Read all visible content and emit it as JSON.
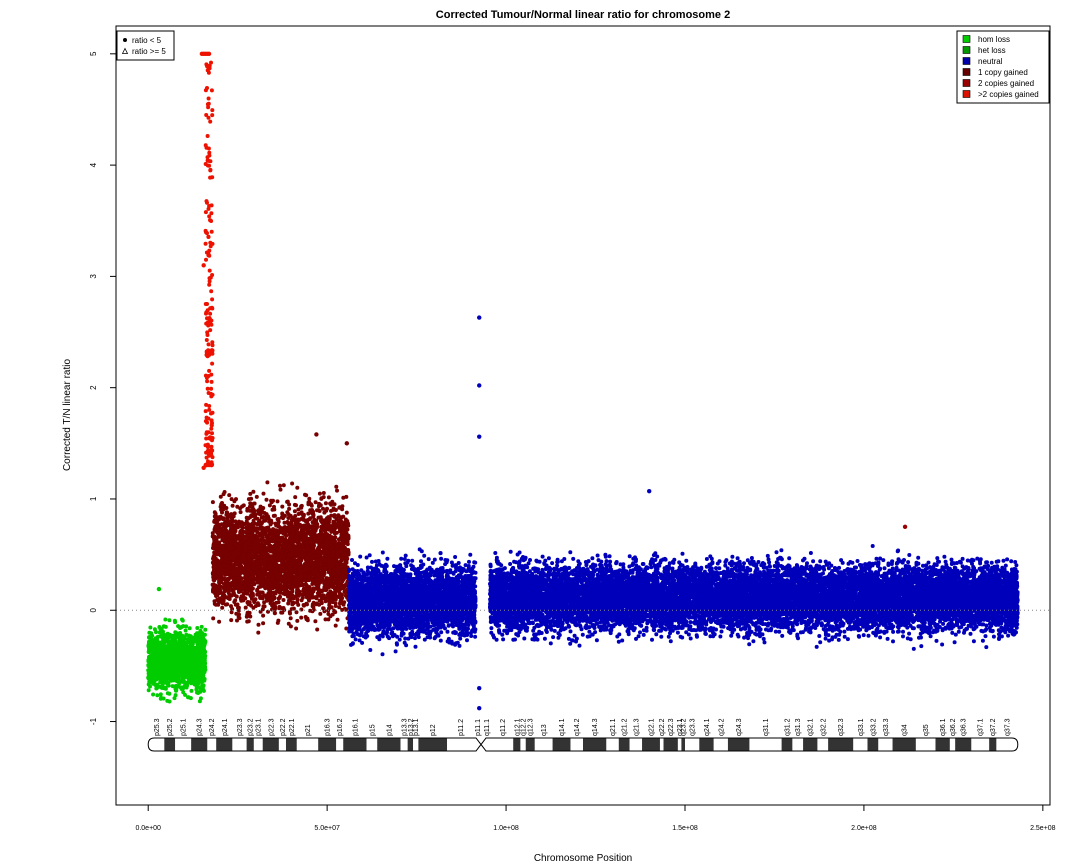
{
  "chart_data": {
    "type": "scatter",
    "title": "Corrected Tumour/Normal linear ratio for chromosome  2",
    "xlabel": "Chromosome Position",
    "ylabel": "Corrected T/N linear ratio",
    "xlim": [
      -9000000,
      252000000
    ],
    "ylim": [
      -1.75,
      5.25
    ],
    "x_ticks": [
      {
        "value": 0,
        "label": "0.0e+00"
      },
      {
        "value": 50000000,
        "label": "5.0e+07"
      },
      {
        "value": 100000000,
        "label": "1.0e+08"
      },
      {
        "value": 150000000,
        "label": "1.5e+08"
      },
      {
        "value": 200000000,
        "label": "2.0e+08"
      },
      {
        "value": 250000000,
        "label": "2.5e+08"
      }
    ],
    "y_ticks": [
      {
        "value": -1,
        "label": "-1"
      },
      {
        "value": 0,
        "label": "0"
      },
      {
        "value": 1,
        "label": "1"
      },
      {
        "value": 2,
        "label": "2"
      },
      {
        "value": 3,
        "label": "3"
      },
      {
        "value": 4,
        "label": "4"
      },
      {
        "value": 5,
        "label": "5"
      }
    ],
    "reference_line": 0,
    "legend_shape": {
      "placement": "top-left",
      "items": [
        {
          "label": "ratio < 5",
          "symbol": "dot"
        },
        {
          "label": "ratio >= 5",
          "symbol": "triangle"
        }
      ]
    },
    "legend_state": {
      "placement": "top-right",
      "items": [
        {
          "label": "hom loss",
          "color": "#00cc00"
        },
        {
          "label": "het loss",
          "color": "#009900"
        },
        {
          "label": "neutral",
          "color": "#0000aa"
        },
        {
          "label": "1 copy gained",
          "color": "#660000"
        },
        {
          "label": "2 copies gained",
          "color": "#990000"
        },
        {
          "label": ">2 copies gained",
          "color": "#dd1100"
        }
      ]
    },
    "segments": [
      {
        "state": "het loss",
        "color": "#00cc00",
        "x_start": 0,
        "x_end": 16000000,
        "median": -0.45,
        "spread": 0.13
      },
      {
        "state": ">2 copies gained",
        "color": "#ee1100",
        "x_start": 16000000,
        "x_end": 18000000,
        "median": 3.2,
        "spread": 1.1
      },
      {
        "state": "1 copy gained",
        "color": "#770000",
        "x_start": 18000000,
        "x_end": 56000000,
        "median": 0.47,
        "spread": 0.23
      },
      {
        "state": "neutral",
        "color": "#0000bb",
        "x_start": 56000000,
        "x_end": 91500000,
        "median": 0.08,
        "spread": 0.15
      },
      {
        "state": "neutral",
        "color": "#0000bb",
        "x_start": 95500000,
        "x_end": 243000000,
        "median": 0.11,
        "spread": 0.14
      }
    ],
    "outliers": [
      {
        "x": 15000000,
        "y": 5.0,
        "color": "#ee1100"
      },
      {
        "x": 15500000,
        "y": 5.0,
        "color": "#ee1100"
      },
      {
        "x": 16000000,
        "y": 5.0,
        "color": "#ee1100"
      },
      {
        "x": 16500000,
        "y": 5.0,
        "color": "#ee1100"
      },
      {
        "x": 17000000,
        "y": 5.0,
        "color": "#ee1100"
      },
      {
        "x": 15500000,
        "y": 3.1,
        "color": "#ee1100"
      },
      {
        "x": 15500000,
        "y": 1.28,
        "color": "#ee1100"
      },
      {
        "x": 92500000,
        "y": 2.63,
        "color": "#0000bb"
      },
      {
        "x": 92500000,
        "y": 2.02,
        "color": "#0000bb"
      },
      {
        "x": 92500000,
        "y": 1.56,
        "color": "#0000bb"
      },
      {
        "x": 92500000,
        "y": -0.88,
        "color": "#0000bb"
      },
      {
        "x": 92500000,
        "y": -0.7,
        "color": "#0000bb"
      },
      {
        "x": 47000000,
        "y": 1.58,
        "color": "#770000"
      },
      {
        "x": 55500000,
        "y": 1.5,
        "color": "#770000"
      },
      {
        "x": 3000000,
        "y": 0.19,
        "color": "#00cc00"
      },
      {
        "x": 211500000,
        "y": 0.75,
        "color": "#990000"
      },
      {
        "x": 140000000,
        "y": 1.07,
        "color": "#0000bb"
      }
    ],
    "ideogram": {
      "length": 243000000,
      "centromere": 93000000,
      "bands": [
        {
          "name": "p25.3",
          "start": 0,
          "end": 4500000,
          "stain": "gneg"
        },
        {
          "name": "p25.2",
          "start": 4500000,
          "end": 7500000,
          "stain": "gpos"
        },
        {
          "name": "p25.1",
          "start": 7500000,
          "end": 12000000,
          "stain": "gneg"
        },
        {
          "name": "p24.3",
          "start": 12000000,
          "end": 16500000,
          "stain": "gpos"
        },
        {
          "name": "p24.2",
          "start": 16500000,
          "end": 19000000,
          "stain": "gneg"
        },
        {
          "name": "p24.1",
          "start": 19000000,
          "end": 23500000,
          "stain": "gpos"
        },
        {
          "name": "p23.3",
          "start": 23500000,
          "end": 27500000,
          "stain": "gneg"
        },
        {
          "name": "p23.2",
          "start": 27500000,
          "end": 29500000,
          "stain": "gpos"
        },
        {
          "name": "p23.1",
          "start": 29500000,
          "end": 32000000,
          "stain": "gneg"
        },
        {
          "name": "p22.3",
          "start": 32000000,
          "end": 36500000,
          "stain": "gpos"
        },
        {
          "name": "p22.2",
          "start": 36500000,
          "end": 38500000,
          "stain": "gneg"
        },
        {
          "name": "p22.1",
          "start": 38500000,
          "end": 41500000,
          "stain": "gpos"
        },
        {
          "name": "p21",
          "start": 41500000,
          "end": 47500000,
          "stain": "gneg"
        },
        {
          "name": "p16.3",
          "start": 47500000,
          "end": 52500000,
          "stain": "gpos"
        },
        {
          "name": "p16.2",
          "start": 52500000,
          "end": 54500000,
          "stain": "gneg"
        },
        {
          "name": "p16.1",
          "start": 54500000,
          "end": 61000000,
          "stain": "gpos"
        },
        {
          "name": "p15",
          "start": 61000000,
          "end": 64000000,
          "stain": "gneg"
        },
        {
          "name": "p14",
          "start": 64000000,
          "end": 70500000,
          "stain": "gpos"
        },
        {
          "name": "p13.3",
          "start": 70500000,
          "end": 72500000,
          "stain": "gneg"
        },
        {
          "name": "p13.2",
          "start": 72500000,
          "end": 74000000,
          "stain": "gpos"
        },
        {
          "name": "p13.1",
          "start": 74000000,
          "end": 75500000,
          "stain": "gneg"
        },
        {
          "name": "p12",
          "start": 75500000,
          "end": 83500000,
          "stain": "gpos"
        },
        {
          "name": "p11.2",
          "start": 83500000,
          "end": 91000000,
          "stain": "gneg"
        },
        {
          "name": "p11.1",
          "start": 91000000,
          "end": 93000000,
          "stain": "acen"
        },
        {
          "name": "q11.1",
          "start": 93000000,
          "end": 96000000,
          "stain": "acen"
        },
        {
          "name": "q11.2",
          "start": 96000000,
          "end": 102000000,
          "stain": "gneg"
        },
        {
          "name": "q12.1",
          "start": 102000000,
          "end": 104000000,
          "stain": "gpos"
        },
        {
          "name": "q12.2",
          "start": 104000000,
          "end": 105500000,
          "stain": "gneg"
        },
        {
          "name": "q12.3",
          "start": 105500000,
          "end": 108000000,
          "stain": "gpos"
        },
        {
          "name": "q13",
          "start": 108000000,
          "end": 113000000,
          "stain": "gneg"
        },
        {
          "name": "q14.1",
          "start": 113000000,
          "end": 118000000,
          "stain": "gpos"
        },
        {
          "name": "q14.2",
          "start": 118000000,
          "end": 121500000,
          "stain": "gneg"
        },
        {
          "name": "q14.3",
          "start": 121500000,
          "end": 128000000,
          "stain": "gpos"
        },
        {
          "name": "q21.1",
          "start": 128000000,
          "end": 131500000,
          "stain": "gneg"
        },
        {
          "name": "q21.2",
          "start": 131500000,
          "end": 134500000,
          "stain": "gpos"
        },
        {
          "name": "q21.3",
          "start": 134500000,
          "end": 138000000,
          "stain": "gneg"
        },
        {
          "name": "q22.1",
          "start": 138000000,
          "end": 143000000,
          "stain": "gpos"
        },
        {
          "name": "q22.2",
          "start": 143000000,
          "end": 144000000,
          "stain": "gneg"
        },
        {
          "name": "q22.3",
          "start": 144000000,
          "end": 148000000,
          "stain": "gpos"
        },
        {
          "name": "q23.1",
          "start": 148000000,
          "end": 149000000,
          "stain": "gneg"
        },
        {
          "name": "q23.2",
          "start": 149000000,
          "end": 150000000,
          "stain": "gpos"
        },
        {
          "name": "q23.3",
          "start": 150000000,
          "end": 154000000,
          "stain": "gneg"
        },
        {
          "name": "q24.1",
          "start": 154000000,
          "end": 158000000,
          "stain": "gpos"
        },
        {
          "name": "q24.2",
          "start": 158000000,
          "end": 162000000,
          "stain": "gneg"
        },
        {
          "name": "q24.3",
          "start": 162000000,
          "end": 168000000,
          "stain": "gpos"
        },
        {
          "name": "q31.1",
          "start": 168000000,
          "end": 177000000,
          "stain": "gneg"
        },
        {
          "name": "q31.2",
          "start": 177000000,
          "end": 180000000,
          "stain": "gpos"
        },
        {
          "name": "q31.3",
          "start": 180000000,
          "end": 183000000,
          "stain": "gneg"
        },
        {
          "name": "q32.1",
          "start": 183000000,
          "end": 187000000,
          "stain": "gpos"
        },
        {
          "name": "q32.2",
          "start": 187000000,
          "end": 190000000,
          "stain": "gneg"
        },
        {
          "name": "q32.3",
          "start": 190000000,
          "end": 197000000,
          "stain": "gpos"
        },
        {
          "name": "q33.1",
          "start": 197000000,
          "end": 201000000,
          "stain": "gneg"
        },
        {
          "name": "q33.2",
          "start": 201000000,
          "end": 204000000,
          "stain": "gpos"
        },
        {
          "name": "q33.3",
          "start": 204000000,
          "end": 208000000,
          "stain": "gneg"
        },
        {
          "name": "q34",
          "start": 208000000,
          "end": 214500000,
          "stain": "gpos"
        },
        {
          "name": "q35",
          "start": 214500000,
          "end": 220000000,
          "stain": "gneg"
        },
        {
          "name": "q36.1",
          "start": 220000000,
          "end": 224000000,
          "stain": "gpos"
        },
        {
          "name": "q36.2",
          "start": 224000000,
          "end": 225500000,
          "stain": "gneg"
        },
        {
          "name": "q36.3",
          "start": 225500000,
          "end": 230000000,
          "stain": "gpos"
        },
        {
          "name": "q37.1",
          "start": 230000000,
          "end": 235000000,
          "stain": "gneg"
        },
        {
          "name": "q37.2",
          "start": 235000000,
          "end": 237000000,
          "stain": "gpos"
        },
        {
          "name": "q37.3",
          "start": 237000000,
          "end": 243000000,
          "stain": "gneg"
        }
      ]
    }
  }
}
